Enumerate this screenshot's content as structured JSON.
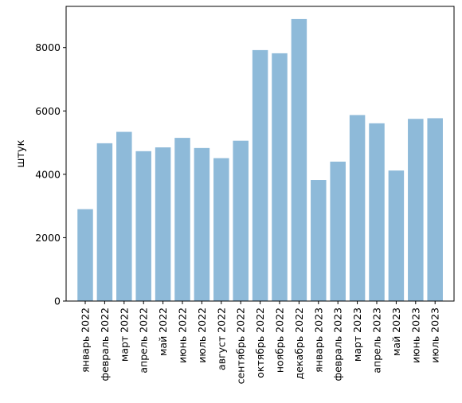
{
  "chart_data": {
    "type": "bar",
    "title": "",
    "xlabel": "",
    "ylabel": "штук",
    "ylim": [
      0,
      9300
    ],
    "yticks": [
      0,
      2000,
      4000,
      6000,
      8000
    ],
    "bar_color": "#8ebad9",
    "grid": false,
    "categories": [
      "январь 2022",
      "февраль 2022",
      "март 2022",
      "апрель 2022",
      "май 2022",
      "июнь 2022",
      "июль 2022",
      "август 2022",
      "сентябрь 2022",
      "октябрь 2022",
      "ноябрь 2022",
      "декабрь 2022",
      "январь 2023",
      "февраль 2023",
      "март 2023",
      "апрель 2023",
      "май 2023",
      "июнь 2023",
      "июль 2023"
    ],
    "values": [
      2900,
      4980,
      5340,
      4730,
      4850,
      5150,
      4830,
      4510,
      5060,
      7920,
      7820,
      8900,
      3820,
      4400,
      5870,
      5610,
      4120,
      5750,
      5770
    ]
  }
}
